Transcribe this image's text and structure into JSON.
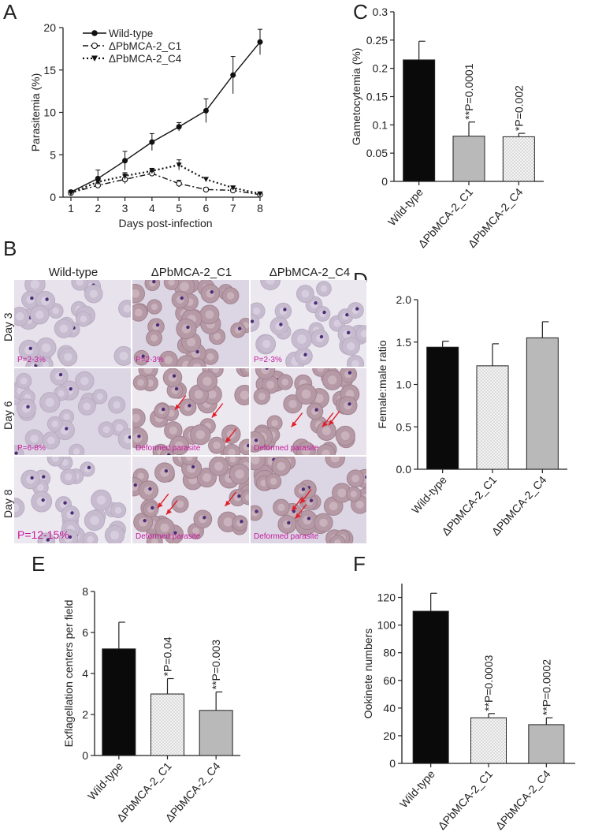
{
  "panels": {
    "A": "A",
    "B": "B",
    "C": "C",
    "D": "D",
    "E": "E",
    "F": "F"
  },
  "chart_data": [
    {
      "panel": "A",
      "type": "line",
      "xlabel": "Days post-infection",
      "ylabel": "Parasitemia (%)",
      "x": [
        1,
        2,
        3,
        4,
        5,
        6,
        7,
        8
      ],
      "xlim": [
        1,
        8
      ],
      "ylim": [
        0,
        20
      ],
      "yticks": [
        0,
        5,
        10,
        15,
        20
      ],
      "legend_position": "top-left",
      "series": [
        {
          "name": "Wild-type",
          "values": [
            0.6,
            2.2,
            4.3,
            6.5,
            8.3,
            10.2,
            14.4,
            18.3
          ],
          "errors": [
            0.2,
            1.0,
            1.1,
            1.0,
            0.5,
            1.4,
            2.2,
            1.5
          ],
          "style": "solid",
          "marker": "filled-circle"
        },
        {
          "name": "ΔPbMCA-2_C1",
          "values": [
            0.5,
            1.4,
            2.1,
            2.8,
            1.6,
            0.9,
            0.8,
            0.3
          ],
          "errors": [
            0.1,
            0.3,
            0.5,
            0.3,
            0.4,
            0.2,
            0.2,
            0.1
          ],
          "style": "dashdot",
          "marker": "open-circle"
        },
        {
          "name": "ΔPbMCA-2_C4",
          "values": [
            0.5,
            1.8,
            2.5,
            3.1,
            3.8,
            2.1,
            1.1,
            0.4
          ],
          "errors": [
            0.1,
            0.3,
            0.4,
            0.3,
            0.6,
            0.2,
            0.2,
            0.1
          ],
          "style": "dotted",
          "marker": "filled-triangle"
        }
      ]
    },
    {
      "panel": "C",
      "type": "bar",
      "ylabel": "Gametocytemia (%)",
      "categories": [
        "Wild-type",
        "ΔPbMCA-2_C1",
        "ΔPbMCA-2_C4"
      ],
      "values": [
        0.215,
        0.08,
        0.079
      ],
      "errors": [
        0.033,
        0.025,
        0.006
      ],
      "annotations": [
        "",
        "**P=0.0001",
        "*P=0.002"
      ],
      "fills": [
        "black",
        "grey",
        "dotted"
      ],
      "ylim": [
        0,
        0.3
      ],
      "yticks": [
        0,
        0.05,
        0.1,
        0.15,
        0.2,
        0.25,
        0.3
      ]
    },
    {
      "panel": "D",
      "type": "bar",
      "ylabel": "Female:male ratio",
      "categories": [
        "Wild-type",
        "ΔPbMCA-2_C1",
        "ΔPbMCA-2_C4"
      ],
      "values": [
        1.44,
        1.22,
        1.55
      ],
      "errors": [
        0.07,
        0.26,
        0.19
      ],
      "annotations": [
        "",
        "",
        ""
      ],
      "fills": [
        "black",
        "dotted",
        "grey"
      ],
      "ylim": [
        0,
        2
      ],
      "yticks": [
        0,
        0.5,
        1.0,
        1.5,
        2.0
      ]
    },
    {
      "panel": "E",
      "type": "bar",
      "ylabel": "Exflagellation centers per field",
      "categories": [
        "Wild-type",
        "ΔPbMCA-2_C1",
        "ΔPbMCA-2_C4"
      ],
      "values": [
        5.2,
        3.0,
        2.2
      ],
      "errors": [
        1.3,
        0.75,
        0.9
      ],
      "annotations": [
        "",
        "*P=0.04",
        "**P=0.003"
      ],
      "fills": [
        "black",
        "dotted",
        "grey"
      ],
      "ylim": [
        0,
        8
      ],
      "yticks": [
        0,
        2,
        4,
        6,
        8
      ]
    },
    {
      "panel": "F",
      "type": "bar",
      "ylabel": "Ookinete numbers",
      "categories": [
        "Wild-type",
        "ΔPbMCA-2_C1",
        "ΔPbMCA-2_C4"
      ],
      "values": [
        110,
        33,
        28
      ],
      "errors": [
        13,
        3,
        5
      ],
      "annotations": [
        "",
        "**P=0.0003",
        "**P=0.0002"
      ],
      "fills": [
        "black",
        "dotted",
        "grey"
      ],
      "ylim": [
        0,
        130
      ],
      "yticks": [
        0,
        20,
        40,
        60,
        80,
        100,
        120
      ]
    }
  ],
  "micrographs": {
    "columns": [
      "Wild-type",
      "ΔPbMCA-2_C1",
      "ΔPbMCA-2_C4"
    ],
    "rows": [
      "Day 3",
      "Day 6",
      "Day 8"
    ],
    "labels": [
      [
        "P=2-3%",
        "P=2-3%",
        "P=2-3%"
      ],
      [
        "P=6-8%",
        "Deformed parasite",
        "Deformed parasite"
      ],
      [
        "P=12-15%",
        "Deformed parasite",
        "Deformed parasite"
      ]
    ]
  }
}
